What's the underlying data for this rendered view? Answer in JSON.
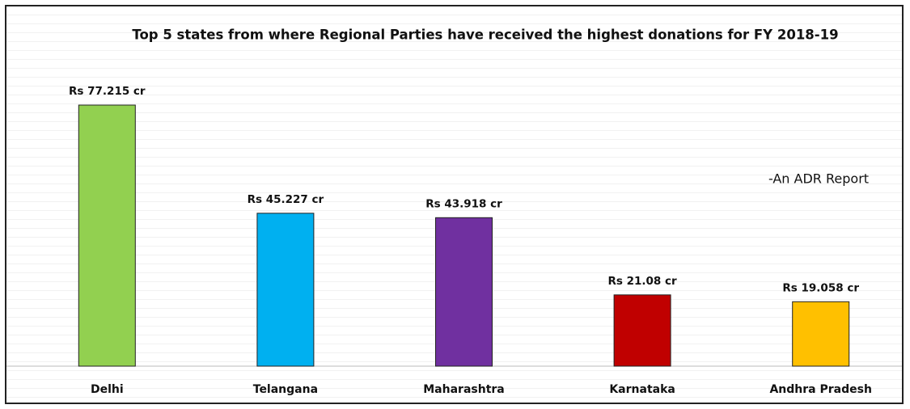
{
  "chart_data": {
    "type": "bar",
    "title": "Top 5 states from where Regional Parties have received the highest donations for FY 2018-19",
    "annotation": "-An ADR Report",
    "categories": [
      "Delhi",
      "Telangana",
      "Maharashtra",
      "Karnataka",
      "Andhra Pradesh"
    ],
    "values": [
      77.215,
      45.227,
      43.918,
      21.08,
      19.058
    ],
    "value_labels": [
      "Rs 77.215 cr",
      "Rs 45.227 cr",
      "Rs 43.918 cr",
      "Rs 21.08 cr",
      "Rs 19.058 cr"
    ],
    "colors": [
      "#92d050",
      "#00b0f0",
      "#7030a0",
      "#c00000",
      "#ffc000"
    ]
  }
}
